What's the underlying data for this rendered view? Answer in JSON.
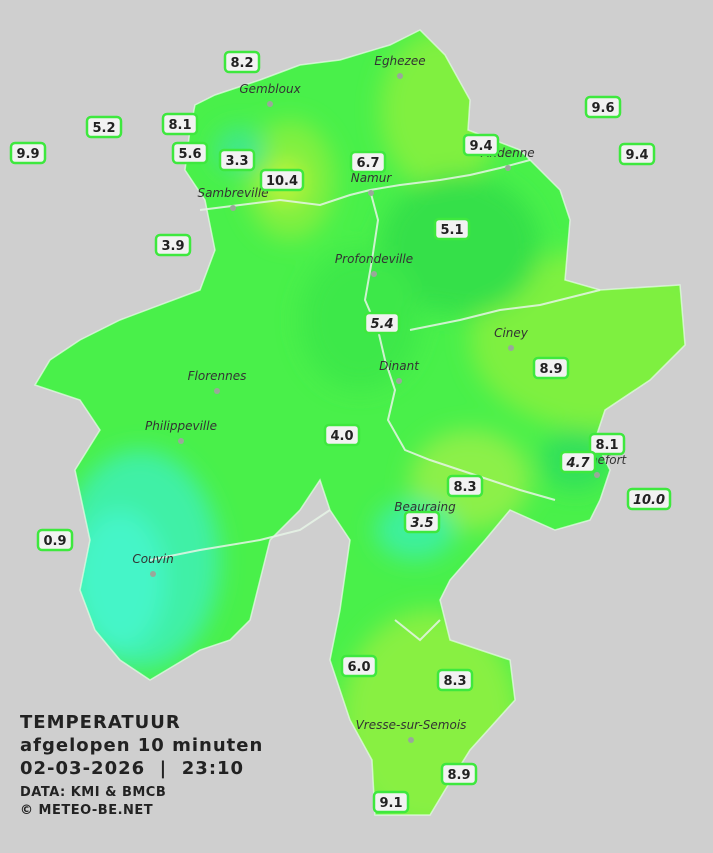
{
  "map": {
    "cities": [
      "Eghezee",
      "Gembloux",
      "Andenne",
      "Namur",
      "Sambreville",
      "Profondeville",
      "Ciney",
      "Dinant",
      "Florennes",
      "Philippeville",
      "Rochefort",
      "Beauraing",
      "Couvin",
      "Vresse-sur-Semois"
    ],
    "stations": [
      {
        "temp": "8.2"
      },
      {
        "temp": "5.2"
      },
      {
        "temp": "8.1"
      },
      {
        "temp": "9.9"
      },
      {
        "temp": "5.6"
      },
      {
        "temp": "3.3"
      },
      {
        "temp": "10.4"
      },
      {
        "temp": "6.7"
      },
      {
        "temp": "9.4"
      },
      {
        "temp": "9.6"
      },
      {
        "temp": "9.4"
      },
      {
        "temp": "3.9"
      },
      {
        "temp": "5.1"
      },
      {
        "temp": "5.4",
        "italic": true
      },
      {
        "temp": "8.9"
      },
      {
        "temp": "4.0"
      },
      {
        "temp": "8.1"
      },
      {
        "temp": "4.7",
        "italic": true
      },
      {
        "temp": "8.3"
      },
      {
        "temp": "10.0",
        "italic": true
      },
      {
        "temp": "3.5",
        "italic": true
      },
      {
        "temp": "0.9"
      },
      {
        "temp": "6.0"
      },
      {
        "temp": "8.3"
      },
      {
        "temp": "8.9"
      },
      {
        "temp": "9.1"
      }
    ],
    "legend": {
      "title": "TEMPERATUUR",
      "subtitle": "afgelopen 10 minuten",
      "datetime": "02-03-2026  |  23:10",
      "source": "DATA: KMI & BMCB",
      "copyright": "© METEO-BE.NET"
    }
  }
}
